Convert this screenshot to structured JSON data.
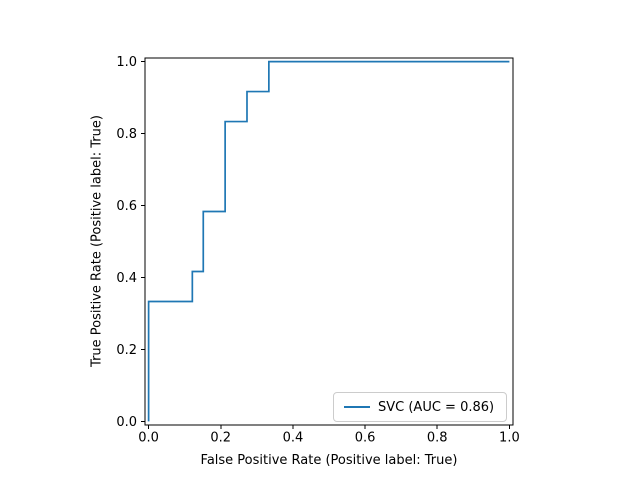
{
  "chart_data": {
    "type": "line",
    "subtype": "roc-step-curve",
    "title": "",
    "xlabel": "False Positive Rate (Positive label: True)",
    "ylabel": "True Positive Rate (Positive label: True)",
    "xlim": [
      -0.01,
      1.01
    ],
    "ylim": [
      -0.01,
      1.01
    ],
    "x_tick_values": [
      0.0,
      0.2,
      0.4,
      0.6,
      0.8,
      1.0
    ],
    "y_tick_values": [
      0.0,
      0.2,
      0.4,
      0.6,
      0.8,
      1.0
    ],
    "x_tick_labels": [
      "0.0",
      "0.2",
      "0.4",
      "0.6",
      "0.8",
      "1.0"
    ],
    "y_tick_labels": [
      "0.0",
      "0.2",
      "0.4",
      "0.6",
      "0.8",
      "1.0"
    ],
    "grid": false,
    "legend_position": "lower right",
    "series": [
      {
        "name": "SVC (AUC = 0.86)",
        "auc": 0.86,
        "color": "#1f77b4",
        "drawstyle": "steps-post",
        "fpr": [
          0.0,
          0.0,
          0.1212,
          0.1212,
          0.1515,
          0.1515,
          0.2121,
          0.2121,
          0.2727,
          0.2727,
          0.3333,
          0.3333,
          1.0
        ],
        "tpr": [
          0.0,
          0.3333,
          0.3333,
          0.4167,
          0.4167,
          0.5833,
          0.5833,
          0.8333,
          0.8333,
          0.9167,
          0.9167,
          1.0,
          1.0
        ]
      }
    ]
  },
  "legend": {
    "label": "SVC (AUC = 0.86)"
  },
  "colors": {
    "curve": "#1f77b4",
    "spine": "#000000",
    "tick": "#000000",
    "text": "#000000",
    "legend_border": "#cccccc",
    "background": "#ffffff"
  }
}
